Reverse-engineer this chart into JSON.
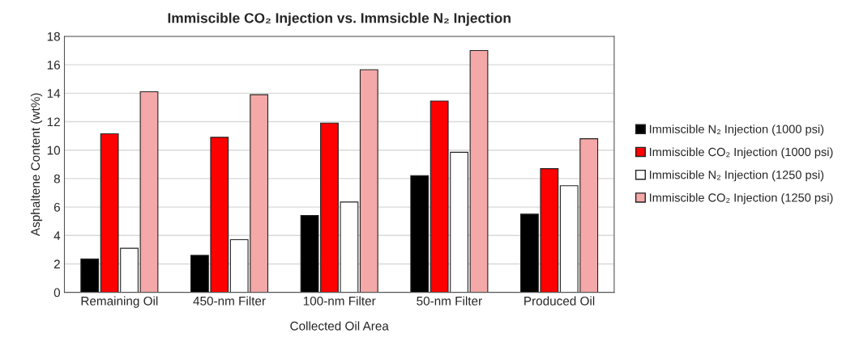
{
  "chart_data": {
    "type": "bar",
    "title": "Immiscible CO₂ Injection vs. Immsicble N₂ Injection",
    "xlabel": "Collected Oil Area",
    "ylabel": "Asphaltene Content (wt%)",
    "categories": [
      "Remaining Oil",
      "450-nm Filter",
      "100-nm Filter",
      "50-nm Filter",
      "Produced Oil"
    ],
    "series": [
      {
        "name": "Immiscible N₂ Injection (1000 psi)",
        "color": "#000000",
        "values": [
          2.35,
          2.6,
          5.4,
          8.2,
          5.5
        ]
      },
      {
        "name": "Immiscible CO₂ Injection (1000 psi)",
        "color": "#ff0000",
        "values": [
          11.15,
          10.9,
          11.9,
          13.45,
          8.7
        ]
      },
      {
        "name": "Immiscible N₂ Injection (1250 psi)",
        "color": "#ffffff",
        "values": [
          3.1,
          3.7,
          6.35,
          9.85,
          7.5
        ]
      },
      {
        "name": "Immiscible CO₂ Injection (1250 psi)",
        "color": "#f4a8a8",
        "values": [
          14.1,
          13.9,
          15.65,
          17.0,
          10.8
        ]
      }
    ],
    "ylim": [
      0,
      18
    ],
    "yticks": [
      0,
      2,
      4,
      6,
      8,
      10,
      12,
      14,
      16,
      18
    ],
    "grid": "y",
    "legend": "right"
  }
}
